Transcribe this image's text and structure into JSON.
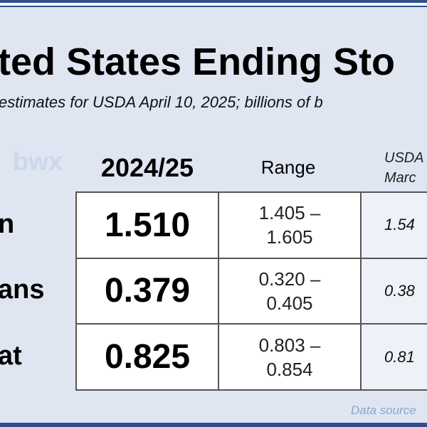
{
  "title": "ted States Ending Sto",
  "subtitle": "estimates for USDA April 10, 2025; billions of b",
  "watermark": "bwx",
  "columns": {
    "main": "2024/25",
    "range": "Range",
    "usda_line1": "USDA",
    "usda_line2": "Marc"
  },
  "rows": [
    {
      "label": "n",
      "value": "1.510",
      "range_low": "1.405 –",
      "range_high": "1.605",
      "usda": "1.54"
    },
    {
      "label": "ans",
      "value": "0.379",
      "range_low": "0.320 –",
      "range_high": "0.405",
      "usda": "0.38"
    },
    {
      "label": "at",
      "value": "0.825",
      "range_low": "0.803 –",
      "range_high": "0.854",
      "usda": "0.81"
    }
  ],
  "source": "Data source",
  "colors": {
    "accent": "#2f4f8f",
    "panel": "#dfe6f2",
    "source_text": "#8aa6cf"
  }
}
